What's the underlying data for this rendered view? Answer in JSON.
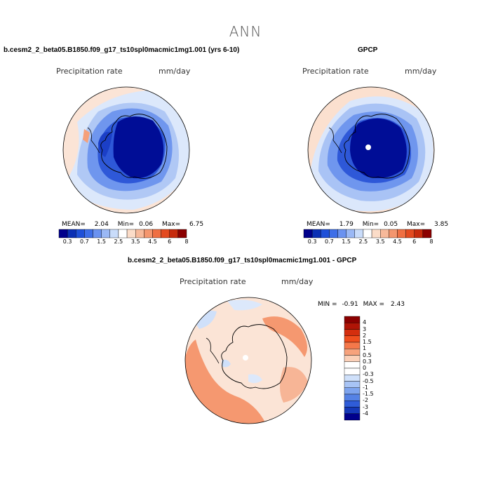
{
  "figure": {
    "title": "ANN"
  },
  "panels": {
    "top_left": {
      "title": "b.cesm2_2_beta05.B1850.f09_g17_ts10spl0macmic1mg1.001 (yrs 6-10)",
      "variable": "Precipitation rate",
      "units": "mm/day",
      "stats": {
        "mean_label": "MEAN=",
        "mean": "2.04",
        "min_label": "Min=",
        "min": "0.06",
        "max_label": "Max=",
        "max": "6.75"
      }
    },
    "top_right": {
      "title": "GPCP",
      "variable": "Precipitation rate",
      "units": "mm/day",
      "stats": {
        "mean_label": "MEAN=",
        "mean": "1.79",
        "min_label": "Min=",
        "min": "0.05",
        "max_label": "Max=",
        "max": "3.85"
      }
    },
    "bottom": {
      "title": "b.cesm2_2_beta05.B1850.f09_g17_ts10spl0macmic1mg1.001 - GPCP",
      "variable": "Precipitation rate",
      "units": "mm/day",
      "stats": {
        "min_label": "MIN =",
        "min": "-0.91",
        "max_label": "MAX =",
        "max": "2.43"
      }
    }
  },
  "colorbars": {
    "abs": {
      "colors": [
        "#00008b",
        "#0a2fb4",
        "#1e50d8",
        "#3d6ee8",
        "#6a92f0",
        "#9ab8f5",
        "#c9dcfa",
        "#ffffff",
        "#fbdcc8",
        "#f7b99a",
        "#f4966e",
        "#ef6f42",
        "#e34a1f",
        "#c62a0c",
        "#8b0000"
      ],
      "labels": [
        "0.3",
        "0.7",
        "1.5",
        "2.5",
        "3.5",
        "4.5",
        "6",
        "8"
      ]
    },
    "diff": {
      "colors": [
        "#8b0000",
        "#b01406",
        "#d42e0e",
        "#ef4e1e",
        "#f5784a",
        "#f7a27c",
        "#fbd0b8",
        "#ffffff",
        "#ffffff",
        "#cfe0fa",
        "#a8c4f5",
        "#7ea4ee",
        "#5582e5",
        "#2f5cd8",
        "#1538b8",
        "#00008b"
      ],
      "labels": [
        "4",
        "3",
        "2",
        "1.5",
        "1",
        "0.5",
        "0.3",
        "0",
        "-0.3",
        "-0.5",
        "-1",
        "-1.5",
        "-2",
        "-3",
        "-4"
      ]
    }
  }
}
